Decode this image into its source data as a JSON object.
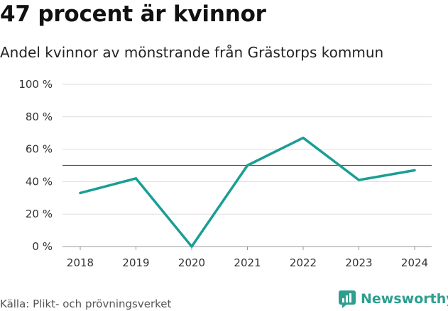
{
  "header": {
    "title": "47 procent är kvinnor",
    "subtitle": "Andel kvinnor av mönstrande från Grästorps kommun"
  },
  "footer": {
    "source": "Källa: Plikt- och prövningsverket",
    "brand": "Newsworthy"
  },
  "colors": {
    "line": "#1a9e94",
    "reference": "#555555",
    "grid": "#dddddd",
    "brand": "#2e9e8e"
  },
  "chart_data": {
    "type": "line",
    "title": "47 procent är kvinnor",
    "subtitle": "Andel kvinnor av mönstrande från Grästorps kommun",
    "xlabel": "",
    "ylabel": "",
    "categories": [
      "2018",
      "2019",
      "2020",
      "2021",
      "2022",
      "2023",
      "2024"
    ],
    "series": [
      {
        "name": "Andel kvinnor",
        "values": [
          33,
          42,
          0,
          50,
          67,
          41,
          47
        ]
      }
    ],
    "reference_line": 50,
    "ylim": [
      0,
      100
    ],
    "yticks": [
      0,
      20,
      40,
      60,
      80,
      100
    ],
    "ytick_labels": [
      "0 %",
      "20 %",
      "40 %",
      "60 %",
      "80 %",
      "100 %"
    ],
    "grid": true,
    "legend": "none"
  }
}
